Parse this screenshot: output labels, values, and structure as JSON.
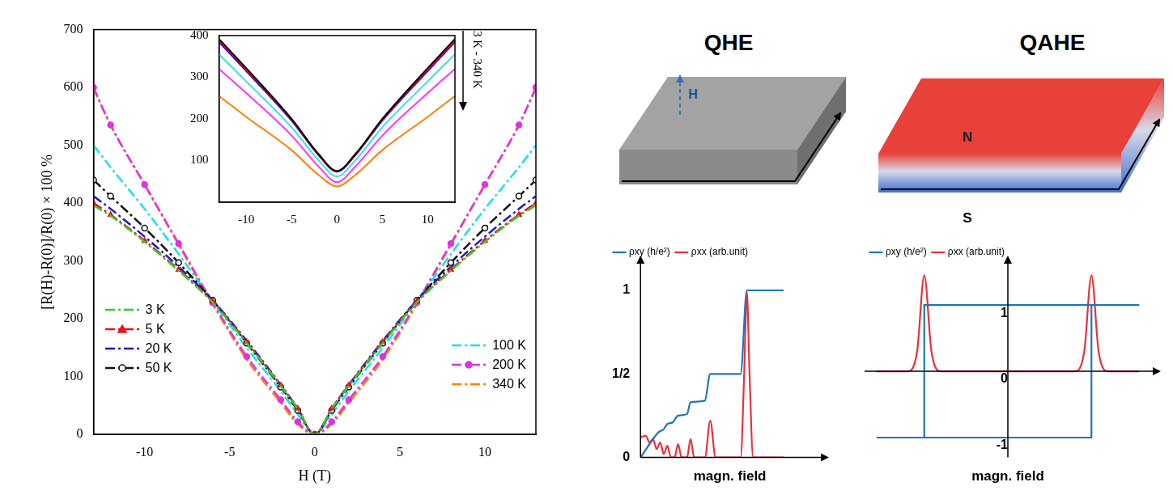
{
  "chart_data": [
    {
      "type": "line",
      "x_label": "H (T)",
      "y_label": "[R(H)-R(0)]/R(0) × 100 %",
      "x": [
        -13,
        -12,
        -10,
        -8,
        -6,
        -4,
        -2,
        -1,
        0,
        1,
        2,
        4,
        6,
        8,
        10,
        12,
        13
      ],
      "xlim": [
        -13,
        13
      ],
      "xticks": [
        -10,
        -5,
        0,
        5,
        10
      ],
      "ylim": [
        0,
        700
      ],
      "yticks": [
        0,
        100,
        200,
        300,
        400,
        500,
        600,
        700
      ],
      "grid": false,
      "legend": "inside",
      "series": [
        {
          "name": "3 K",
          "color": "#33cc33",
          "line_style": "dashdot",
          "marker": "none",
          "values": [
            396,
            378,
            333,
            283,
            228,
            158,
            84,
            44,
            0,
            44,
            84,
            158,
            228,
            283,
            333,
            378,
            396
          ]
        },
        {
          "name": "5 K",
          "color": "#e8141c",
          "line_style": "dashdot",
          "marker": "triangle",
          "values": [
            400,
            380,
            335,
            285,
            230,
            160,
            85,
            45,
            0,
            45,
            85,
            160,
            230,
            285,
            335,
            380,
            400
          ]
        },
        {
          "name": "20 K",
          "color": "#1a1acc",
          "line_style": "dashdot",
          "marker": "none",
          "values": [
            412,
            390,
            342,
            290,
            232,
            162,
            86,
            45,
            0,
            45,
            86,
            162,
            232,
            290,
            342,
            390,
            412
          ]
        },
        {
          "name": "50 K",
          "color": "#111111",
          "line_style": "dashdot",
          "marker": "open-circle",
          "values": [
            440,
            412,
            357,
            297,
            232,
            158,
            82,
            42,
            0,
            42,
            82,
            158,
            232,
            297,
            357,
            412,
            440
          ]
        },
        {
          "name": "100 K",
          "color": "#19e0e5",
          "line_style": "dashdot",
          "marker": "none",
          "values": [
            500,
            462,
            390,
            312,
            230,
            150,
            75,
            35,
            0,
            35,
            75,
            150,
            230,
            312,
            390,
            462,
            500
          ]
        },
        {
          "name": "200 K",
          "color": "#e033e0",
          "line_style": "dashdot",
          "marker": "circle",
          "values": [
            600,
            535,
            432,
            330,
            228,
            135,
            60,
            22,
            0,
            22,
            60,
            135,
            228,
            330,
            432,
            535,
            600
          ]
        },
        {
          "name": "340 K",
          "color": "#ff8000",
          "line_style": "dashdot",
          "marker": "none",
          "values": [
            598,
            535,
            432,
            328,
            225,
            130,
            55,
            18,
            0,
            18,
            55,
            130,
            225,
            328,
            432,
            535,
            598
          ]
        }
      ]
    },
    {
      "type": "line",
      "annotation": "3 K - 340 K",
      "x": [
        -13,
        -10,
        -5,
        -2,
        0,
        2,
        5,
        10,
        13
      ],
      "xlim": [
        -13,
        13
      ],
      "xticks": [
        -10,
        -5,
        0,
        5,
        10
      ],
      "ylim": [
        0,
        400
      ],
      "yticks": [
        100,
        200,
        300,
        400
      ],
      "grid": false,
      "series": [
        {
          "color": "#000000",
          "line_style": "solid",
          "values": [
            392,
            322,
            200,
            115,
            75,
            115,
            200,
            322,
            392
          ]
        },
        {
          "color": "#ff0000",
          "line_style": "solid",
          "values": [
            388,
            318,
            198,
            113,
            74,
            113,
            198,
            318,
            388
          ]
        },
        {
          "color": "#0000ff",
          "line_style": "solid",
          "values": [
            385,
            315,
            196,
            112,
            73,
            112,
            196,
            315,
            385
          ]
        },
        {
          "color": "#33e0f0",
          "line_style": "solid",
          "values": [
            355,
            290,
            180,
            100,
            62,
            100,
            180,
            290,
            355
          ]
        },
        {
          "color": "#ff33ff",
          "line_style": "solid",
          "values": [
            320,
            262,
            160,
            85,
            48,
            85,
            160,
            262,
            320
          ]
        },
        {
          "color": "#ff8000",
          "line_style": "solid",
          "values": [
            255,
            205,
            125,
            65,
            38,
            65,
            125,
            205,
            255
          ]
        }
      ]
    },
    {
      "type": "line",
      "x_label": "magn. field",
      "xlim": [
        0,
        10
      ],
      "ylim": [
        0,
        1.15
      ],
      "yticks": [
        0,
        {
          "value": 0.5,
          "label": "1/2"
        },
        1
      ],
      "tick_labels": "y",
      "grid": false,
      "legend": "top",
      "series": [
        {
          "name": "ρxy (h/e²)",
          "color": "#1f77b4",
          "line_style": "solid",
          "x": [
            0,
            1.0,
            1.3,
            1.5,
            1.8,
            2.1,
            2.6,
            2.8,
            3.6,
            3.9,
            5.6,
            5.95,
            8.0
          ],
          "values": [
            0,
            0.15,
            0.17,
            0.2,
            0.21,
            0.25,
            0.26,
            0.33,
            0.34,
            0.5,
            0.5,
            1,
            1
          ]
        },
        {
          "name": "ρxx (arb.unit)",
          "color": "#e8313a",
          "line_style": "solid",
          "x": [
            0,
            0.3,
            0.5,
            0.7,
            0.9,
            1.1,
            1.3,
            1.5,
            1.7,
            1.9,
            2.1,
            2.3,
            2.6,
            2.8,
            3.0,
            3.6,
            3.9,
            4.2,
            5.6,
            5.8,
            5.95,
            6.1,
            6.3,
            8.0
          ],
          "values": [
            0.12,
            0.13,
            0.09,
            0.11,
            0.05,
            0.09,
            0.02,
            0.07,
            0,
            0,
            0.08,
            0,
            0,
            0.11,
            0,
            0,
            0.22,
            0,
            0,
            0.5,
            0.99,
            0.5,
            0,
            0
          ]
        }
      ]
    },
    {
      "type": "line",
      "x_label": "magn. field",
      "xlim": [
        -6,
        6
      ],
      "ylim": [
        -1.3,
        1.6
      ],
      "yticks": [
        -1,
        0,
        1
      ],
      "tick_labels": "y",
      "grid": false,
      "legend": "top",
      "series": [
        {
          "name": "ρxy (h/e²)",
          "color": "#1f77b4",
          "line_style": "solid",
          "x": [
            -5.5,
            3.5,
            3.5,
            5.5,
            -3.5,
            -3.5
          ],
          "values": [
            -1,
            -1,
            1,
            1,
            1,
            -1
          ]
        },
        {
          "name": "ρxx (arb.unit)",
          "color": "#e8313a",
          "line_style": "solid",
          "x": [
            -5.5,
            -4.2,
            -3.8,
            -3.5,
            -3.2,
            -2.8,
            2.8,
            3.2,
            3.5,
            3.8,
            4.2,
            5.5
          ],
          "values": [
            0,
            0,
            0.3,
            1.45,
            0.3,
            0,
            0,
            0.3,
            1.45,
            0.3,
            0,
            0
          ]
        }
      ]
    }
  ],
  "diagrams": [
    {
      "title": "QHE",
      "field_label": "H"
    },
    {
      "title": "QAHE",
      "north_label": "N",
      "south_label": "S"
    }
  ]
}
